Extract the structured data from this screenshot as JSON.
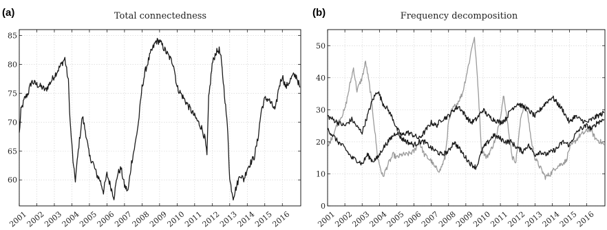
{
  "panels": [
    {
      "letter": "(a)",
      "title": "Total connectedness"
    },
    {
      "letter": "(b)",
      "title": "Frequency decomposition"
    }
  ],
  "colors": {
    "black_series": "#1a1a1a",
    "gray_series": "#9a9a9a"
  },
  "chart_data": [
    {
      "type": "line",
      "title": "Total connectedness",
      "xlabel": "",
      "ylabel": "",
      "xlim": [
        2001.0,
        2017.05
      ],
      "ylim": [
        55.5,
        86
      ],
      "x_ticks": [
        2001,
        2002,
        2003,
        2004,
        2005,
        2006,
        2007,
        2008,
        2009,
        2010,
        2011,
        2012,
        2013,
        2014,
        2015,
        2016
      ],
      "x_tick_labels": [
        "2001",
        "2002",
        "2003",
        "2004",
        "2005",
        "2006",
        "2007",
        "2008",
        "2009",
        "2010",
        "2011",
        "2012",
        "2013",
        "2014",
        "2015",
        "2016"
      ],
      "y_ticks": [
        60,
        65,
        70,
        75,
        80,
        85
      ],
      "y_tick_labels": [
        "60",
        "65",
        "70",
        "75",
        "80",
        "85"
      ],
      "grid": true,
      "series": [
        {
          "color": "#1a1a1a",
          "x": [
            2001.0,
            2001.1,
            2001.3,
            2001.5,
            2001.7,
            2002.0,
            2002.3,
            2002.5,
            2002.8,
            2003.0,
            2003.2,
            2003.4,
            2003.6,
            2003.8,
            2003.9,
            2004.1,
            2004.2,
            2004.4,
            2004.6,
            2004.8,
            2005.0,
            2005.2,
            2005.4,
            2005.6,
            2005.8,
            2006.0,
            2006.2,
            2006.4,
            2006.6,
            2006.8,
            2007.0,
            2007.2,
            2007.4,
            2007.6,
            2007.8,
            2008.0,
            2008.2,
            2008.5,
            2008.8,
            2009.0,
            2009.2,
            2009.4,
            2009.6,
            2009.8,
            2010.0,
            2010.2,
            2010.4,
            2010.6,
            2010.8,
            2011.0,
            2011.2,
            2011.4,
            2011.6,
            2011.7,
            2011.8,
            2012.0,
            2012.2,
            2012.4,
            2012.5,
            2012.7,
            2012.9,
            2013.0,
            2013.2,
            2013.4,
            2013.6,
            2013.8,
            2014.0,
            2014.2,
            2014.4,
            2014.6,
            2014.8,
            2015.0,
            2015.2,
            2015.4,
            2015.6,
            2015.8,
            2016.0,
            2016.2,
            2016.4,
            2016.6,
            2016.8,
            2017.0
          ],
          "y": [
            68,
            72,
            74,
            75,
            77,
            76.5,
            76,
            75.5,
            77,
            78,
            79,
            80,
            81,
            77,
            70,
            62,
            60,
            66,
            71,
            68,
            64,
            63,
            61,
            60,
            58,
            61,
            59,
            57,
            61,
            62,
            59,
            58,
            63,
            66,
            70,
            76,
            79,
            82,
            84,
            84,
            83,
            82,
            81,
            80,
            76,
            75,
            74,
            73,
            72,
            71,
            70,
            69,
            67,
            64,
            74,
            80,
            82,
            82.5,
            81,
            75,
            68,
            60,
            57,
            59,
            61,
            60,
            62,
            63,
            64,
            67,
            72,
            74,
            74,
            73,
            72,
            76,
            78,
            76,
            77,
            78,
            78,
            76
          ]
        }
      ]
    },
    {
      "type": "line",
      "title": "Frequency decomposition",
      "xlabel": "",
      "ylabel": "",
      "xlim": [
        2001.0,
        2017.05
      ],
      "ylim": [
        0,
        55
      ],
      "x_ticks": [
        2001,
        2002,
        2003,
        2004,
        2005,
        2006,
        2007,
        2008,
        2009,
        2010,
        2011,
        2012,
        2013,
        2014,
        2015,
        2016
      ],
      "x_tick_labels": [
        "2001",
        "2002",
        "2003",
        "2004",
        "2005",
        "2006",
        "2007",
        "2008",
        "2009",
        "2010",
        "2011",
        "2012",
        "2013",
        "2014",
        "2015",
        "2016"
      ],
      "y_ticks": [
        0,
        10,
        20,
        30,
        40,
        50
      ],
      "y_tick_labels": [
        "0",
        "10",
        "20",
        "30",
        "40",
        "50"
      ],
      "grid": true,
      "series": [
        {
          "color": "#9a9a9a",
          "x": [
            2001.0,
            2001.3,
            2001.6,
            2002.0,
            2002.3,
            2002.5,
            2002.7,
            2003.0,
            2003.2,
            2003.5,
            2003.7,
            2003.9,
            2004.2,
            2004.5,
            2004.8,
            2005.0,
            2005.3,
            2005.6,
            2006.0,
            2006.3,
            2006.6,
            2007.0,
            2007.2,
            2007.5,
            2007.8,
            2008.0,
            2008.2,
            2008.5,
            2008.8,
            2009.0,
            2009.2,
            2009.4,
            2009.5,
            2009.7,
            2009.9,
            2010.2,
            2010.5,
            2010.8,
            2011.0,
            2011.2,
            2011.5,
            2011.7,
            2011.9,
            2012.2,
            2012.4,
            2012.6,
            2012.8,
            2013.0,
            2013.3,
            2013.6,
            2013.9,
            2014.2,
            2014.5,
            2014.8,
            2015.0,
            2015.3,
            2015.6,
            2015.9,
            2016.2,
            2016.5,
            2016.8,
            2017.0
          ],
          "y": [
            18,
            22,
            26,
            30,
            38,
            43,
            36,
            40,
            45,
            35,
            25,
            15,
            9,
            13,
            16,
            15,
            16,
            16,
            17,
            20,
            16,
            14,
            12,
            11,
            15,
            26,
            30,
            32,
            35,
            40,
            45,
            51,
            52,
            38,
            18,
            15,
            18,
            22,
            28,
            35,
            22,
            15,
            14,
            28,
            32,
            28,
            20,
            15,
            12,
            9,
            10,
            12,
            13,
            14,
            18,
            20,
            22,
            23,
            24,
            21,
            20,
            19
          ]
        },
        {
          "color": "#1a1a1a",
          "x": [
            2001.0,
            2001.3,
            2001.6,
            2002.0,
            2002.4,
            2002.8,
            2003.0,
            2003.3,
            2003.6,
            2003.9,
            2004.2,
            2004.5,
            2004.8,
            2005.0,
            2005.3,
            2005.6,
            2006.0,
            2006.3,
            2006.6,
            2007.0,
            2007.3,
            2007.6,
            2008.0,
            2008.3,
            2008.6,
            2009.0,
            2009.3,
            2009.6,
            2010.0,
            2010.3,
            2010.6,
            2011.0,
            2011.3,
            2011.6,
            2012.0,
            2012.3,
            2012.6,
            2013.0,
            2013.3,
            2013.6,
            2014.0,
            2014.3,
            2014.6,
            2015.0,
            2015.3,
            2015.6,
            2016.0,
            2016.3,
            2016.6,
            2017.0
          ],
          "y": [
            28,
            27,
            26,
            25,
            27,
            24,
            23,
            28,
            33,
            36,
            32,
            30,
            27,
            24,
            22,
            23,
            22,
            21,
            23,
            26,
            25,
            27,
            28,
            30,
            31,
            28,
            26,
            27,
            30,
            28,
            27,
            26,
            27,
            30,
            32,
            31,
            30,
            28,
            30,
            32,
            34,
            32,
            30,
            26,
            28,
            27,
            26,
            27,
            28,
            29
          ]
        },
        {
          "color": "#1a1a1a",
          "x": [
            2001.0,
            2001.3,
            2001.6,
            2002.0,
            2002.4,
            2002.8,
            2003.0,
            2003.3,
            2003.6,
            2003.9,
            2004.2,
            2004.5,
            2004.8,
            2005.0,
            2005.3,
            2005.6,
            2006.0,
            2006.3,
            2006.6,
            2007.0,
            2007.3,
            2007.6,
            2008.0,
            2008.3,
            2008.6,
            2009.0,
            2009.3,
            2009.6,
            2010.0,
            2010.3,
            2010.6,
            2011.0,
            2011.3,
            2011.6,
            2012.0,
            2012.3,
            2012.6,
            2013.0,
            2013.3,
            2013.6,
            2014.0,
            2014.3,
            2014.6,
            2015.0,
            2015.3,
            2015.6,
            2016.0,
            2016.3,
            2016.6,
            2017.0
          ],
          "y": [
            24,
            22,
            20,
            18,
            15,
            14,
            13,
            16,
            14,
            15,
            18,
            20,
            22,
            23,
            21,
            20,
            19,
            20,
            20,
            18,
            17,
            16,
            17,
            20,
            18,
            15,
            13,
            12,
            18,
            20,
            22,
            21,
            20,
            20,
            18,
            17,
            19,
            16,
            17,
            16,
            17,
            18,
            20,
            19,
            22,
            24,
            25,
            24,
            26,
            27
          ]
        }
      ]
    }
  ]
}
